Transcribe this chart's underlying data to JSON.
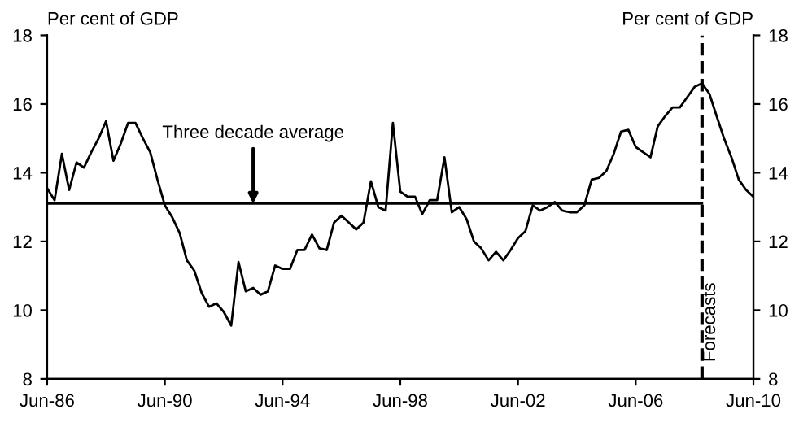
{
  "chart_data": {
    "type": "line",
    "x": [
      "1986-06",
      "1986-09",
      "1986-12",
      "1987-03",
      "1987-06",
      "1987-09",
      "1987-12",
      "1988-03",
      "1988-06",
      "1988-09",
      "1988-12",
      "1989-03",
      "1989-06",
      "1989-09",
      "1989-12",
      "1990-03",
      "1990-06",
      "1990-09",
      "1990-12",
      "1991-03",
      "1991-06",
      "1991-09",
      "1991-12",
      "1992-03",
      "1992-06",
      "1992-09",
      "1992-12",
      "1993-03",
      "1993-06",
      "1993-09",
      "1993-12",
      "1994-03",
      "1994-06",
      "1994-09",
      "1994-12",
      "1995-03",
      "1995-06",
      "1995-09",
      "1995-12",
      "1996-03",
      "1996-06",
      "1996-09",
      "1996-12",
      "1997-03",
      "1997-06",
      "1997-09",
      "1997-12",
      "1998-03",
      "1998-06",
      "1998-09",
      "1998-12",
      "1999-03",
      "1999-06",
      "1999-09",
      "1999-12",
      "2000-03",
      "2000-06",
      "2000-09",
      "2000-12",
      "2001-03",
      "2001-06",
      "2001-09",
      "2001-12",
      "2002-03",
      "2002-06",
      "2002-09",
      "2002-12",
      "2003-03",
      "2003-06",
      "2003-09",
      "2003-12",
      "2004-03",
      "2004-06",
      "2004-09",
      "2004-12",
      "2005-03",
      "2005-06",
      "2005-09",
      "2005-12",
      "2006-03",
      "2006-06",
      "2006-09",
      "2006-12",
      "2007-03",
      "2007-06",
      "2007-09",
      "2007-12",
      "2008-03",
      "2008-06",
      "2008-09",
      "2008-12",
      "2009-03",
      "2009-06",
      "2009-09",
      "2009-12",
      "2010-03",
      "2010-06"
    ],
    "series": [
      {
        "color": "#000000",
        "values": [
          13.55,
          13.2,
          14.55,
          13.5,
          14.3,
          14.15,
          14.6,
          15.0,
          15.5,
          14.35,
          14.85,
          15.45,
          15.45,
          15.0,
          14.6,
          13.8,
          13.05,
          12.7,
          12.25,
          11.45,
          11.15,
          10.5,
          10.1,
          10.2,
          9.95,
          9.55,
          11.4,
          10.55,
          10.65,
          10.45,
          10.55,
          11.3,
          11.2,
          11.2,
          11.75,
          11.75,
          12.2,
          11.8,
          11.75,
          12.55,
          12.75,
          12.55,
          12.35,
          12.55,
          13.75,
          13.0,
          12.9,
          15.45,
          13.45,
          13.3,
          13.3,
          12.8,
          13.2,
          13.2,
          14.45,
          12.85,
          13.0,
          12.65,
          12.0,
          11.8,
          11.45,
          11.7,
          11.45,
          11.75,
          12.1,
          12.3,
          13.05,
          12.9,
          13.0,
          13.15,
          12.9,
          12.85,
          12.85,
          13.05,
          13.8,
          13.85,
          14.05,
          14.55,
          15.2,
          15.25,
          14.75,
          14.6,
          14.45,
          15.35,
          15.65,
          15.9,
          15.9,
          16.2,
          16.5,
          16.6,
          16.3,
          15.65,
          15.0,
          14.45,
          13.8,
          13.5,
          13.3
        ]
      },
      {
        "color": "#000000",
        "x": [
          "1986-06",
          "2008-09"
        ],
        "values": [
          13.1,
          13.1
        ]
      }
    ],
    "xlim": [
      "1986-06",
      "2010-06"
    ],
    "xticks": [
      {
        "value": "1986-06",
        "label": "Jun-86"
      },
      {
        "value": "1990-06",
        "label": "Jun-90"
      },
      {
        "value": "1994-06",
        "label": "Jun-94"
      },
      {
        "value": "1998-06",
        "label": "Jun-98"
      },
      {
        "value": "2002-06",
        "label": "Jun-02"
      },
      {
        "value": "2006-06",
        "label": "Jun-06"
      },
      {
        "value": "2010-06",
        "label": "Jun-10"
      }
    ],
    "ylim": [
      8,
      18
    ],
    "yticks": [
      8,
      10,
      12,
      14,
      16,
      18
    ],
    "y2lim": [
      8,
      18
    ],
    "y2ticks": [
      8,
      10,
      12,
      14,
      16,
      18
    ],
    "ylabel": "Per cent of GDP",
    "y2label": "Per cent of GDP",
    "ref_lines": [
      {
        "axis": "x",
        "value": "2008-09",
        "label": "Forecasts",
        "color": "#000000",
        "line_style": "dashed"
      }
    ],
    "annotations": [
      {
        "text": "Three decade average",
        "x": "1993-06",
        "y": 13.1
      }
    ],
    "grid": false,
    "legend": false,
    "marker": "none",
    "line_style": "solid"
  }
}
